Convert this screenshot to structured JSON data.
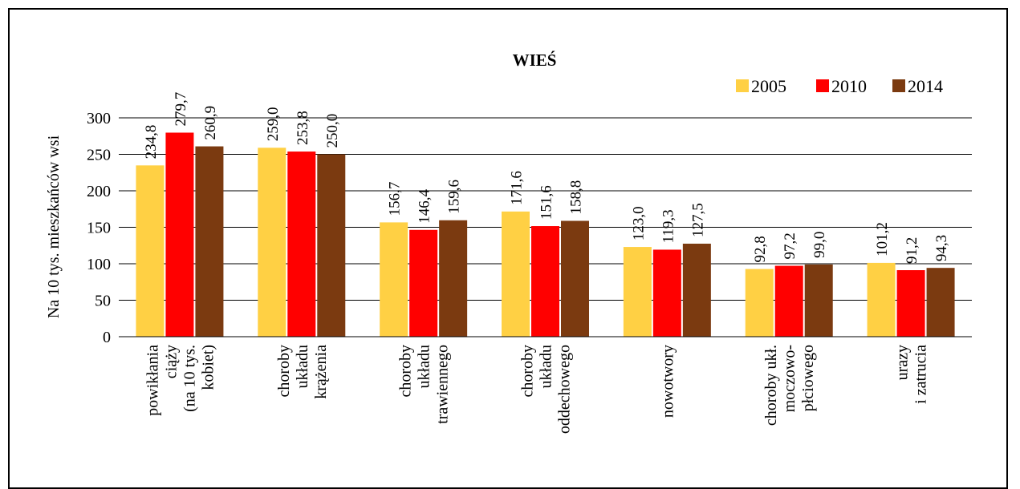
{
  "chart_data": {
    "type": "bar",
    "title": "WIEŚ",
    "xlabel": "",
    "ylabel": "Na 10 tys. mieszkańców wsi",
    "ylim": [
      0,
      300
    ],
    "yticks": [
      0,
      50,
      100,
      150,
      200,
      250,
      300
    ],
    "grid": true,
    "legend_position": "top-right",
    "categories": [
      [
        "powikłania",
        "ciąży",
        "(na 10 tys.",
        "kobiet)"
      ],
      [
        "choroby",
        "układu",
        "krążenia"
      ],
      [
        "choroby",
        "układu",
        "trawiennego"
      ],
      [
        "choroby",
        "układu",
        "oddechowego"
      ],
      [
        "nowotwory"
      ],
      [
        "choroby ukł.",
        "moczowo-",
        "płciowego"
      ],
      [
        "urazy",
        "i zatrucia"
      ]
    ],
    "series": [
      {
        "name": "2005",
        "color": "#FFD044",
        "values": [
          234.8,
          259.0,
          156.7,
          171.6,
          123.0,
          92.8,
          101.2
        ],
        "labels": [
          "234,8",
          "259,0",
          "156,7",
          "171,6",
          "123,0",
          "92,8",
          "101,2"
        ]
      },
      {
        "name": "2010",
        "color": "#FF0000",
        "values": [
          279.7,
          253.8,
          146.4,
          151.6,
          119.3,
          97.2,
          91.2
        ],
        "labels": [
          "279,7",
          "253,8",
          "146,4",
          "151,6",
          "119,3",
          "97,2",
          "91,2"
        ]
      },
      {
        "name": "2014",
        "color": "#7B3A10",
        "values": [
          260.9,
          250.0,
          159.6,
          158.8,
          127.5,
          99.0,
          94.3
        ],
        "labels": [
          "260,9",
          "250,0",
          "159,6",
          "158,8",
          "127,5",
          "99,0",
          "94,3"
        ]
      }
    ]
  }
}
